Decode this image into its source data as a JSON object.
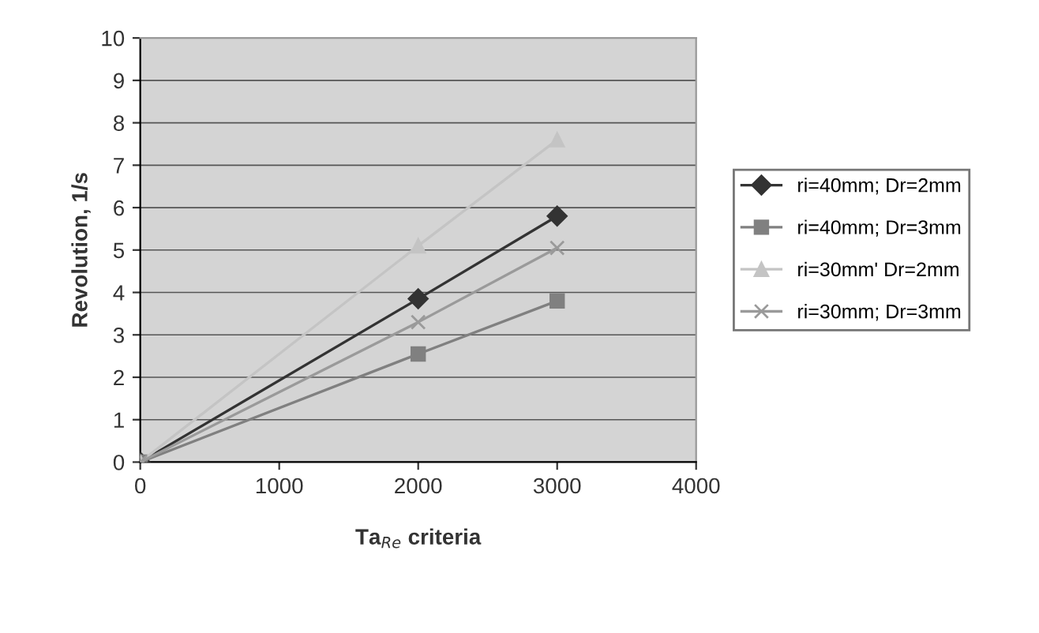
{
  "chart_data": {
    "type": "line",
    "xlabel": "Ta$_{Re}$ criteria",
    "ylabel": "Revolution, 1/s",
    "x": [
      0,
      2000,
      3000
    ],
    "series": [
      {
        "name": "ri=40mm; Dr=2mm",
        "color": "#333333",
        "marker": "diamond",
        "values": [
          0,
          3.85,
          5.8
        ]
      },
      {
        "name": "ri=40mm; Dr=3mm",
        "color": "#808080",
        "marker": "square",
        "values": [
          0,
          2.55,
          3.8
        ]
      },
      {
        "name": "ri=30mm' Dr=2mm",
        "color": "#c4c4c4",
        "marker": "triangle",
        "values": [
          0,
          5.1,
          7.6
        ]
      },
      {
        "name": "ri=30mm; Dr=3mm",
        "color": "#9a9a9a",
        "marker": "cross",
        "values": [
          0,
          3.3,
          5.05
        ]
      }
    ],
    "xlim": [
      0,
      4000
    ],
    "xticks": [
      0,
      1000,
      2000,
      3000,
      4000
    ],
    "ylim": [
      0,
      10
    ],
    "yticks": [
      0,
      1,
      2,
      3,
      4,
      5,
      6,
      7,
      8,
      9,
      10
    ],
    "grid": "y",
    "legend": "right"
  }
}
